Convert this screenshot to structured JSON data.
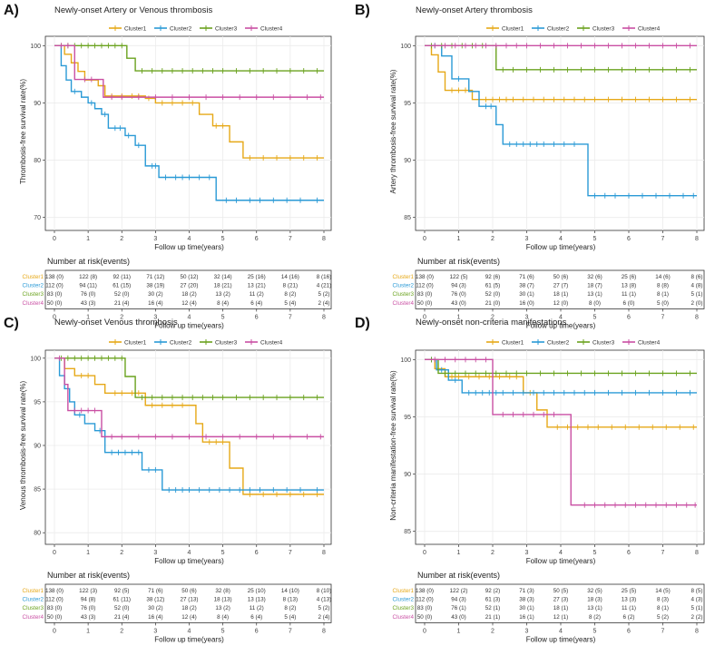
{
  "panels_meta": {
    "letters": [
      "A)",
      "B)",
      "C)",
      "D)"
    ]
  },
  "legend_labels": [
    "Cluster1",
    "Cluster2",
    "Cluster3",
    "Cluster4"
  ],
  "colors": {
    "Cluster1": "#e6a817",
    "Cluster2": "#2a9ad6",
    "Cluster3": "#6aa21e",
    "Cluster4": "#c94fa3"
  },
  "risk_table_title": "Number at risk(events)",
  "chart_data": [
    {
      "type": "line",
      "subtype": "kaplan-meier step",
      "panel": "A)",
      "title": "Newly-onset Artery or Venous thrombosis",
      "xlabel": "Follow up time(years)",
      "ylabel": "Thrombosis-free survival rate(%)",
      "xlim": [
        0,
        8
      ],
      "ylim": [
        69,
        101
      ],
      "xticks": [
        0,
        1,
        2,
        3,
        4,
        5,
        6,
        7,
        8
      ],
      "yticks": [
        70,
        80,
        90,
        100
      ],
      "series": [
        {
          "name": "Cluster1",
          "x": [
            0,
            0.3,
            0.5,
            0.7,
            0.9,
            1.3,
            1.5,
            2.7,
            3.0,
            4.3,
            4.7,
            5.2,
            5.6,
            8.0
          ],
          "y": [
            100,
            98.5,
            97.0,
            95.5,
            94.0,
            93.0,
            91.2,
            90.8,
            90.0,
            88.0,
            86.0,
            83.2,
            80.4,
            80.4
          ],
          "censor": [
            1.7,
            2.0,
            2.3,
            2.5,
            2.8,
            3.2,
            3.5,
            3.8,
            4.1,
            4.8,
            5.0,
            5.8,
            6.2,
            6.6,
            7.0,
            7.4,
            7.8
          ]
        },
        {
          "name": "Cluster2",
          "x": [
            0,
            0.2,
            0.35,
            0.5,
            0.8,
            1.0,
            1.2,
            1.4,
            1.6,
            2.1,
            2.4,
            2.7,
            3.1,
            3.5,
            4.8,
            8.0
          ],
          "y": [
            100,
            96.5,
            94.0,
            92.0,
            91.0,
            90.0,
            89.0,
            88.0,
            85.6,
            84.3,
            82.6,
            79.0,
            77.0,
            77.0,
            73.0,
            73.0
          ],
          "censor": [
            0.6,
            1.1,
            1.5,
            1.8,
            1.95,
            2.2,
            2.5,
            2.9,
            3.0,
            3.3,
            3.6,
            3.8,
            4.0,
            4.3,
            4.6,
            5.1,
            5.4,
            5.8,
            6.1,
            6.5,
            6.9,
            7.3,
            7.8
          ]
        },
        {
          "name": "Cluster3",
          "x": [
            0,
            2.15,
            2.4,
            8.0
          ],
          "y": [
            100,
            97.8,
            95.6,
            95.6
          ],
          "censor": [
            0.2,
            0.4,
            0.6,
            0.8,
            1.0,
            1.2,
            1.4,
            1.6,
            1.8,
            2.0,
            2.6,
            2.9,
            3.2,
            3.5,
            3.8,
            4.1,
            4.4,
            4.7,
            5.0,
            5.4,
            5.8,
            6.2,
            6.6,
            7.0,
            7.4,
            7.8
          ]
        },
        {
          "name": "Cluster4",
          "x": [
            0,
            0.6,
            1.45,
            8.0
          ],
          "y": [
            100,
            94.1,
            91.0,
            91.0
          ],
          "censor": [
            0.2,
            0.4,
            0.9,
            1.1,
            1.7,
            2.0,
            2.5,
            3.0,
            3.5,
            4.0,
            4.5,
            5.0,
            5.5,
            6.0,
            6.5,
            7.0,
            7.5,
            7.9
          ]
        }
      ],
      "risk_table": {
        "times": [
          0,
          1,
          2,
          3,
          4,
          5,
          6,
          7,
          8
        ],
        "rows": [
          [
            "138 (0)",
            "122 (8)",
            "92 (11)",
            "71 (12)",
            "50 (12)",
            "32 (14)",
            "25 (16)",
            "14 (16)",
            "8 (16)"
          ],
          [
            "112 (0)",
            "94 (11)",
            "61 (15)",
            "38 (19)",
            "27 (20)",
            "18 (21)",
            "13 (21)",
            "8 (21)",
            "4 (21)"
          ],
          [
            "83 (0)",
            "76 (0)",
            "52 (0)",
            "30 (2)",
            "18 (2)",
            "13 (2)",
            "11 (2)",
            "8 (2)",
            "5 (2)"
          ],
          [
            "50 (0)",
            "43 (3)",
            "21 (4)",
            "16 (4)",
            "12 (4)",
            "8 (4)",
            "6 (4)",
            "5 (4)",
            "2 (4)"
          ]
        ]
      }
    },
    {
      "type": "line",
      "subtype": "kaplan-meier step",
      "panel": "B)",
      "title": "Newly-onset Artery thrombosis",
      "xlabel": "Follow up time(years)",
      "ylabel": "Artery thrombosis-free survival rate(%)",
      "xlim": [
        0,
        8
      ],
      "ylim": [
        84.5,
        100.5
      ],
      "xticks": [
        0,
        1,
        2,
        3,
        4,
        5,
        6,
        7,
        8
      ],
      "yticks": [
        85,
        90,
        95,
        100
      ],
      "series": [
        {
          "name": "Cluster1",
          "x": [
            0,
            0.2,
            0.4,
            0.6,
            1.4,
            8.0
          ],
          "y": [
            100,
            99.2,
            97.7,
            96.1,
            95.3,
            95.3
          ],
          "censor": [
            0.8,
            1.0,
            1.2,
            1.6,
            1.8,
            2.0,
            2.2,
            2.4,
            2.6,
            2.9,
            3.2,
            3.5,
            3.8,
            4.1,
            4.4,
            4.7,
            5.0,
            5.4,
            5.8,
            6.2,
            6.6,
            7.0,
            7.4,
            7.8
          ]
        },
        {
          "name": "Cluster2",
          "x": [
            0,
            0.5,
            0.8,
            1.3,
            1.6,
            2.1,
            2.3,
            4.8,
            8.0
          ],
          "y": [
            100,
            99.1,
            97.1,
            96.0,
            94.7,
            93.1,
            91.4,
            86.9,
            86.9
          ],
          "censor": [
            0.3,
            1.0,
            1.8,
            1.95,
            2.5,
            2.7,
            2.9,
            3.1,
            3.3,
            3.5,
            3.8,
            4.1,
            4.4,
            5.0,
            5.3,
            5.6,
            6.0,
            6.4,
            6.8,
            7.2,
            7.6,
            7.9
          ]
        },
        {
          "name": "Cluster3",
          "x": [
            0,
            2.1,
            8.0
          ],
          "y": [
            100,
            97.9,
            97.9
          ],
          "censor": [
            0.2,
            0.5,
            0.8,
            1.1,
            1.4,
            1.7,
            2.3,
            2.6,
            3.0,
            3.4,
            3.8,
            4.2,
            4.6,
            5.0,
            5.4,
            5.8,
            6.2,
            6.6,
            7.0,
            7.4,
            7.8
          ]
        },
        {
          "name": "Cluster4",
          "x": [
            0,
            8.0
          ],
          "y": [
            100,
            100
          ],
          "censor": [
            0.3,
            0.6,
            0.9,
            1.2,
            1.5,
            1.8,
            2.1,
            2.4,
            2.7,
            3.0,
            3.4,
            3.8,
            4.2,
            4.6,
            5.0,
            5.4,
            5.8,
            6.2,
            6.6,
            7.0,
            7.4,
            7.8
          ]
        }
      ],
      "risk_table": {
        "times": [
          0,
          1,
          2,
          3,
          4,
          5,
          6,
          7,
          8
        ],
        "rows": [
          [
            "138 (0)",
            "122 (5)",
            "92 (6)",
            "71 (6)",
            "50 (6)",
            "32 (6)",
            "25 (6)",
            "14 (6)",
            "8 (6)"
          ],
          [
            "112 (0)",
            "94 (3)",
            "61 (5)",
            "38 (7)",
            "27 (7)",
            "18 (7)",
            "13 (8)",
            "8 (8)",
            "4 (8)"
          ],
          [
            "83 (0)",
            "76 (0)",
            "52 (0)",
            "30 (1)",
            "18 (1)",
            "13 (1)",
            "11 (1)",
            "8 (1)",
            "5 (1)"
          ],
          [
            "50 (0)",
            "43 (0)",
            "21 (0)",
            "16 (0)",
            "12 (0)",
            "8 (0)",
            "6 (0)",
            "5 (0)",
            "2 (0)"
          ]
        ]
      }
    },
    {
      "type": "line",
      "subtype": "kaplan-meier step",
      "panel": "C)",
      "title": "Newly-onset Venous thrombosis",
      "xlabel": "Follow up time(years)",
      "ylabel": "Venous thrombosis-free survival rate(%)",
      "xlim": [
        0,
        8
      ],
      "ylim": [
        79.5,
        100.5
      ],
      "xticks": [
        0,
        1,
        2,
        3,
        4,
        5,
        6,
        7,
        8
      ],
      "yticks": [
        80,
        85,
        90,
        95,
        100
      ],
      "series": [
        {
          "name": "Cluster1",
          "x": [
            0,
            0.3,
            0.6,
            1.2,
            1.5,
            2.7,
            4.2,
            4.4,
            5.2,
            5.6,
            8.0
          ],
          "y": [
            100,
            98.8,
            98.0,
            97.0,
            96.0,
            94.6,
            92.5,
            90.4,
            87.4,
            84.4,
            84.4
          ],
          "censor": [
            0.8,
            1.0,
            1.8,
            2.0,
            2.3,
            2.5,
            2.9,
            3.2,
            3.5,
            3.8,
            4.6,
            4.8,
            5.0,
            5.8,
            6.2,
            6.6,
            7.0,
            7.4,
            7.8
          ]
        },
        {
          "name": "Cluster2",
          "x": [
            0,
            0.15,
            0.3,
            0.45,
            0.6,
            0.9,
            1.2,
            1.5,
            2.6,
            3.2,
            8.0
          ],
          "y": [
            100,
            98.0,
            96.5,
            95.0,
            93.5,
            92.5,
            91.7,
            89.2,
            87.2,
            84.9,
            84.9
          ],
          "censor": [
            0.75,
            1.35,
            1.7,
            1.9,
            2.1,
            2.3,
            2.5,
            2.8,
            3.0,
            3.4,
            3.6,
            3.8,
            4.0,
            4.3,
            4.6,
            4.9,
            5.2,
            5.5,
            5.8,
            6.1,
            6.5,
            6.9,
            7.3,
            7.8
          ]
        },
        {
          "name": "Cluster3",
          "x": [
            0,
            2.1,
            2.4,
            8.0
          ],
          "y": [
            100,
            97.9,
            95.5,
            95.5
          ],
          "censor": [
            0.2,
            0.4,
            0.6,
            0.8,
            1.0,
            1.2,
            1.4,
            1.6,
            1.8,
            2.0,
            2.6,
            2.9,
            3.2,
            3.5,
            3.8,
            4.1,
            4.4,
            4.7,
            5.0,
            5.4,
            5.8,
            6.2,
            6.6,
            7.0,
            7.4,
            7.8
          ]
        },
        {
          "name": "Cluster4",
          "x": [
            0,
            0.3,
            0.4,
            1.4,
            8.0
          ],
          "y": [
            100,
            97.0,
            94.0,
            91.0,
            91.0
          ],
          "censor": [
            0.15,
            0.6,
            0.8,
            1.0,
            1.2,
            1.7,
            2.0,
            2.5,
            3.0,
            3.5,
            4.0,
            4.5,
            5.0,
            5.5,
            6.0,
            6.5,
            7.0,
            7.5,
            7.9
          ]
        }
      ],
      "risk_table": {
        "times": [
          0,
          1,
          2,
          3,
          4,
          5,
          6,
          7,
          8
        ],
        "rows": [
          [
            "138 (0)",
            "122 (3)",
            "92 (5)",
            "71 (6)",
            "50 (6)",
            "32 (8)",
            "25 (10)",
            "14 (10)",
            "8 (10)"
          ],
          [
            "112 (0)",
            "94 (8)",
            "61 (11)",
            "38 (12)",
            "27 (13)",
            "18 (13)",
            "13 (13)",
            "8 (13)",
            "4 (13)"
          ],
          [
            "83 (0)",
            "76 (0)",
            "52 (0)",
            "30 (2)",
            "18 (2)",
            "13 (2)",
            "11 (2)",
            "8 (2)",
            "5 (2)"
          ],
          [
            "50 (0)",
            "43 (3)",
            "21 (4)",
            "16 (4)",
            "12 (4)",
            "8 (4)",
            "6 (4)",
            "5 (4)",
            "2 (4)"
          ]
        ]
      }
    },
    {
      "type": "line",
      "subtype": "kaplan-meier step",
      "panel": "D)",
      "title": "Newly-onset non-criteria manifestations",
      "xlabel": "Follow up time(years)",
      "ylabel": "Non-criteria manifestation-free survival rate(%)",
      "xlim": [
        0,
        8
      ],
      "ylim": [
        84.5,
        100.5
      ],
      "xticks": [
        0,
        1,
        2,
        3,
        4,
        5,
        6,
        7,
        8
      ],
      "yticks": [
        85,
        90,
        95,
        100
      ],
      "series": [
        {
          "name": "Cluster1",
          "x": [
            0,
            0.3,
            0.6,
            2.9,
            3.3,
            3.6,
            8.0
          ],
          "y": [
            100,
            99.2,
            98.5,
            97.1,
            95.6,
            94.1,
            94.1
          ],
          "censor": [
            0.8,
            1.0,
            1.3,
            1.6,
            1.9,
            2.2,
            2.5,
            2.7,
            3.1,
            3.9,
            4.2,
            4.5,
            4.8,
            5.1,
            5.5,
            5.9,
            6.3,
            6.7,
            7.1,
            7.5,
            7.9
          ]
        },
        {
          "name": "Cluster2",
          "x": [
            0,
            0.35,
            0.7,
            1.1,
            8.0
          ],
          "y": [
            100,
            99.1,
            98.2,
            97.1,
            97.1
          ],
          "censor": [
            0.2,
            0.5,
            0.9,
            1.3,
            1.5,
            1.7,
            1.9,
            2.1,
            2.3,
            2.6,
            2.9,
            3.2,
            3.5,
            3.8,
            4.1,
            4.4,
            4.7,
            5.0,
            5.4,
            5.8,
            6.2,
            6.6,
            7.0,
            7.4,
            7.8
          ]
        },
        {
          "name": "Cluster3",
          "x": [
            0,
            0.4,
            8.0
          ],
          "y": [
            100,
            98.8,
            98.8
          ],
          "censor": [
            0.2,
            0.6,
            0.9,
            1.2,
            1.5,
            1.8,
            2.1,
            2.4,
            2.7,
            3.0,
            3.4,
            3.8,
            4.2,
            4.6,
            5.0,
            5.4,
            5.8,
            6.2,
            6.6,
            7.0,
            7.4,
            7.8
          ]
        },
        {
          "name": "Cluster4",
          "x": [
            0,
            2.0,
            4.3,
            8.0
          ],
          "y": [
            100,
            95.2,
            87.3,
            87.3
          ],
          "censor": [
            0.3,
            0.6,
            0.9,
            1.2,
            1.5,
            1.8,
            2.3,
            2.6,
            2.9,
            3.2,
            3.5,
            3.8,
            4.7,
            5.0,
            5.3,
            5.6,
            5.9,
            6.2,
            6.5,
            6.8,
            7.1,
            7.4,
            7.7,
            7.95
          ]
        }
      ],
      "risk_table": {
        "times": [
          0,
          1,
          2,
          3,
          4,
          5,
          6,
          7,
          8
        ],
        "rows": [
          [
            "138 (0)",
            "122 (2)",
            "92 (2)",
            "71 (3)",
            "50 (5)",
            "32 (5)",
            "25 (5)",
            "14 (5)",
            "8 (5)"
          ],
          [
            "112 (0)",
            "94 (3)",
            "61 (3)",
            "38 (3)",
            "27 (3)",
            "18 (3)",
            "13 (3)",
            "8 (3)",
            "4 (3)"
          ],
          [
            "83 (0)",
            "76 (1)",
            "52 (1)",
            "30 (1)",
            "18 (1)",
            "13 (1)",
            "11 (1)",
            "8 (1)",
            "5 (1)"
          ],
          [
            "50 (0)",
            "43 (0)",
            "21 (1)",
            "16 (1)",
            "12 (1)",
            "8 (2)",
            "6 (2)",
            "5 (2)",
            "2 (2)"
          ]
        ]
      }
    }
  ]
}
